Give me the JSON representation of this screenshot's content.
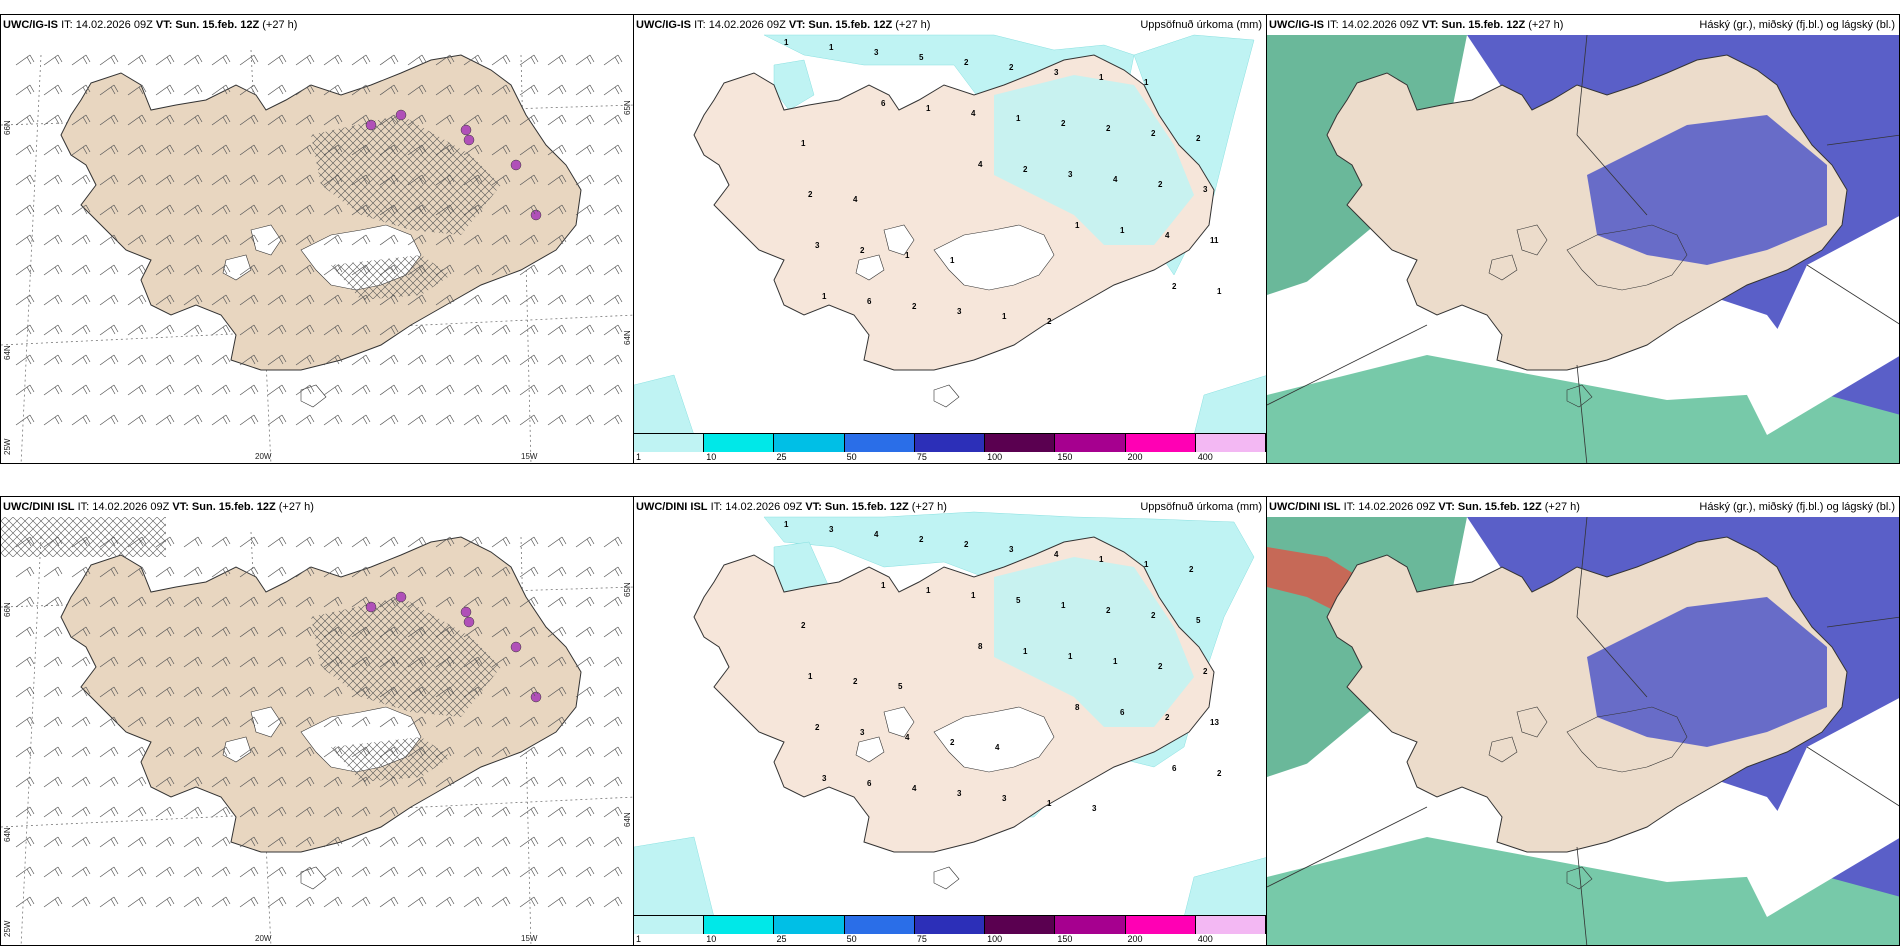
{
  "rows": [
    {
      "model": "UWC/IG-IS",
      "it": "IT: 14.02.2026 09Z",
      "vt_label": "VT:",
      "vt": "Sun. 15.feb. 12Z",
      "lead": "(+27 h)",
      "precip_title": "Uppsöfnuð úrkoma (mm)",
      "cloud_title": "Háský (gr.), miðský (fj.bl.) og lágský (bl.)"
    },
    {
      "model": "UWC/DINI ISL",
      "it": "IT: 14.02.2026 09Z",
      "vt_label": "VT:",
      "vt": "Sun. 15.feb. 12Z",
      "lead": "(+27 h)",
      "precip_title": "Uppsöfnuð úrkoma (mm)",
      "cloud_title": "Háský (gr.), miðský (fj.bl.) og lágský (bl.)"
    }
  ],
  "wind_axes": {
    "lon_labels": [
      "20W",
      "15W"
    ],
    "lat_labels": [
      "66N",
      "64N"
    ],
    "corner_label": "25W",
    "right_lat_labels": [
      "65N",
      "64N"
    ]
  },
  "colorbar": {
    "labels": [
      "1",
      "10",
      "25",
      "50",
      "75",
      "100",
      "150",
      "200",
      "400"
    ],
    "colors": [
      "#bff3f3",
      "#00e8e8",
      "#00bfe6",
      "#2a6ee8",
      "#2c2fb8",
      "#5a0050",
      "#a6008f",
      "#ff00b4",
      "#f3b8f3"
    ]
  },
  "precip_values": {
    "top": [
      "1",
      "6",
      "4",
      "1",
      "2",
      "1",
      "1",
      "2",
      "1",
      "1",
      "3",
      "4",
      "3",
      "4",
      "1",
      "5",
      "1",
      "4",
      "11",
      "6",
      "2",
      "2",
      "2",
      "3",
      "2",
      "2",
      "2",
      "3",
      "2",
      "3",
      "3",
      "2",
      "2",
      "1",
      "1",
      "1",
      "2",
      "4",
      "1",
      "2",
      "1",
      "1"
    ],
    "bottom": [
      "1",
      "1",
      "8",
      "8",
      "6",
      "3",
      "1",
      "1",
      "6",
      "2",
      "4",
      "1",
      "1",
      "2",
      "3",
      "2",
      "5",
      "1",
      "13",
      "6",
      "2",
      "1",
      "2",
      "2",
      "4",
      "3",
      "2",
      "2",
      "3",
      "3",
      "4",
      "2",
      "1",
      "4",
      "3",
      "1",
      "5",
      "2",
      "2",
      "1",
      "1",
      "2",
      "5",
      "4",
      "3",
      "2"
    ]
  }
}
